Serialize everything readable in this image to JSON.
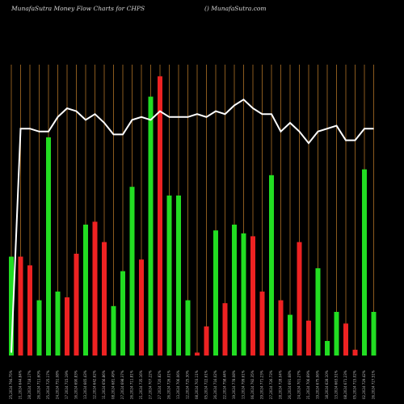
{
  "header": {
    "left": "MunafaSutra  Money Flow  Charts for CHPS",
    "right": "() MunafaSutra.com"
  },
  "colors": {
    "background": "#000000",
    "grid": "#8a5a1e",
    "up": "#22dd22",
    "down": "#ee2222",
    "line": "#ffffff"
  },
  "chart_data": {
    "type": "bar",
    "title": "",
    "xlabel": "",
    "ylabel": "",
    "ylim": [
      0,
      100
    ],
    "categories": [
      "25,2024 794.75%",
      "21,2024 644.84%",
      "28,2024 718.17%",
      "26,2024 711.60%",
      "25,2024 725.17%",
      "24,2024 751.08%",
      "17 2024 715.19%",
      "16,2024 690.83%",
      "13,2024 665.43%",
      "12,2024 642.62%",
      "11,2024 656.86%",
      "08,2024 681.49%",
      "27,2024 698.37%",
      "26,2024 711.81%",
      "21,2024 735.16%",
      "27,2024 707.22%",
      "27 2024 720.82%",
      "26,2024 726.01%",
      "13,2024 706.06%",
      "12,2024 725.30%",
      "08,2024 703.11%",
      "05,2024 722.61%",
      "26,2024 716.02%",
      "22,2024 758.44%",
      "19,2024 778.08%",
      "13,2024 799.61%",
      "06,2024 792.35%",
      "29,2024 771.23%",
      "27,2024 726.73%",
      "28,2024 728.04%",
      "26,2024 691.68%",
      "24,2024 701.27%",
      "21,2024 706.69%",
      "19,2024 675.06%",
      "18,2024 628.10%",
      "13,2024 663.51%",
      "08,2024 671.23%",
      "05,2024 715.02%",
      "02,2024 729.42%",
      "26,2024 727.51%"
    ],
    "bars": [
      {
        "value": 34,
        "direction": "up"
      },
      {
        "value": 34,
        "direction": "down"
      },
      {
        "value": 31,
        "direction": "down"
      },
      {
        "value": 19,
        "direction": "up"
      },
      {
        "value": 75,
        "direction": "up"
      },
      {
        "value": 22,
        "direction": "up"
      },
      {
        "value": 20,
        "direction": "down"
      },
      {
        "value": 35,
        "direction": "down"
      },
      {
        "value": 45,
        "direction": "up"
      },
      {
        "value": 46,
        "direction": "down"
      },
      {
        "value": 39,
        "direction": "down"
      },
      {
        "value": 17,
        "direction": "up"
      },
      {
        "value": 29,
        "direction": "up"
      },
      {
        "value": 58,
        "direction": "up"
      },
      {
        "value": 33,
        "direction": "down"
      },
      {
        "value": 89,
        "direction": "up"
      },
      {
        "value": 96,
        "direction": "down"
      },
      {
        "value": 55,
        "direction": "up"
      },
      {
        "value": 55,
        "direction": "up"
      },
      {
        "value": 19,
        "direction": "up"
      },
      {
        "value": 1,
        "direction": "down"
      },
      {
        "value": 10,
        "direction": "down"
      },
      {
        "value": 43,
        "direction": "up"
      },
      {
        "value": 18,
        "direction": "down"
      },
      {
        "value": 45,
        "direction": "up"
      },
      {
        "value": 42,
        "direction": "up"
      },
      {
        "value": 41,
        "direction": "down"
      },
      {
        "value": 22,
        "direction": "down"
      },
      {
        "value": 62,
        "direction": "up"
      },
      {
        "value": 19,
        "direction": "down"
      },
      {
        "value": 14,
        "direction": "up"
      },
      {
        "value": 39,
        "direction": "down"
      },
      {
        "value": 12,
        "direction": "down"
      },
      {
        "value": 30,
        "direction": "up"
      },
      {
        "value": 5,
        "direction": "up"
      },
      {
        "value": 15,
        "direction": "up"
      },
      {
        "value": 11,
        "direction": "down"
      },
      {
        "value": 2,
        "direction": "down"
      },
      {
        "value": 64,
        "direction": "up"
      },
      {
        "value": 15,
        "direction": "up"
      }
    ],
    "line": [
      1,
      78,
      78,
      77,
      77,
      82,
      85,
      84,
      81,
      83,
      80,
      76,
      76,
      81,
      82,
      81,
      84,
      82,
      82,
      82,
      83,
      82,
      84,
      83,
      86,
      88,
      85,
      83,
      83,
      77,
      80,
      77,
      73,
      77,
      78,
      79,
      74,
      74,
      78,
      78
    ],
    "grid": true,
    "legend": "none"
  }
}
